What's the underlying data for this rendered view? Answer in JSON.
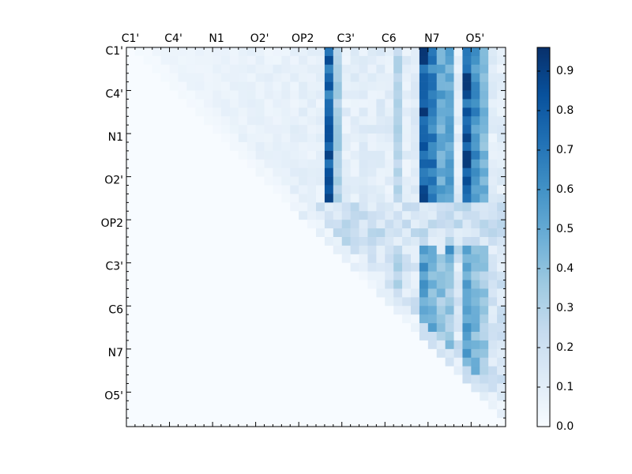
{
  "chart_data": {
    "type": "heatmap",
    "title": "",
    "xlabel": "",
    "ylabel": "",
    "n": 44,
    "x_tick_labels": [
      "C1'",
      "C4'",
      "N1",
      "O2'",
      "OP2",
      "C3'",
      "C6",
      "N7",
      "O5'"
    ],
    "y_tick_labels": [
      "C1'",
      "C4'",
      "N1",
      "O2'",
      "OP2",
      "C3'",
      "C6",
      "N7",
      "O5'"
    ],
    "colorbar": {
      "min": 0.0,
      "max": 0.96,
      "ticks": [
        "0.0",
        "0.1",
        "0.2",
        "0.3",
        "0.4",
        "0.5",
        "0.6",
        "0.7",
        "0.8",
        "0.9"
      ],
      "tick_values": [
        0.0,
        0.1,
        0.2,
        0.3,
        0.4,
        0.5,
        0.6,
        0.7,
        0.8,
        0.9
      ],
      "colormap": "Blues"
    },
    "matrix_description": "upper-triangular correlation matrix (approximate)"
  }
}
